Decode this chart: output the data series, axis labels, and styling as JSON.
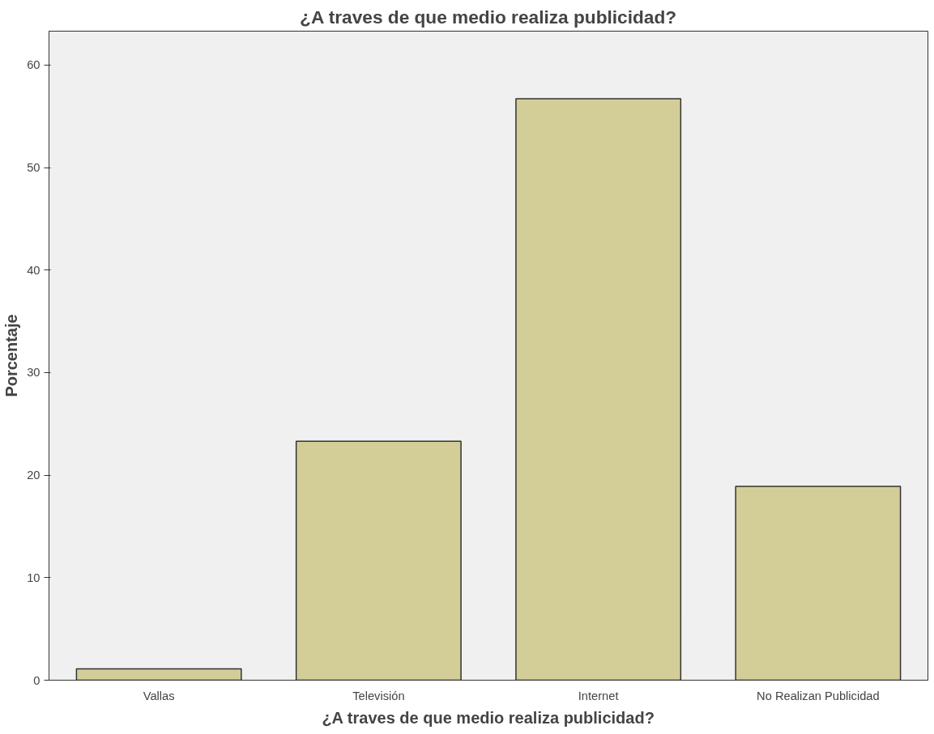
{
  "chart_data": {
    "type": "bar",
    "title": "¿A traves de que medio realiza publicidad?",
    "xlabel": "¿A traves de que medio realiza publicidad?",
    "ylabel": "Porcentaje",
    "categories": [
      "Vallas",
      "Televisión",
      "Internet",
      "No Realizan Publicidad"
    ],
    "values": [
      1.1,
      23.3,
      56.7,
      18.9
    ],
    "color": "#d3ce97",
    "ylim": [
      0,
      63.3
    ],
    "yticks": [
      0,
      10,
      20,
      30,
      40,
      50,
      60
    ],
    "grid": false
  }
}
